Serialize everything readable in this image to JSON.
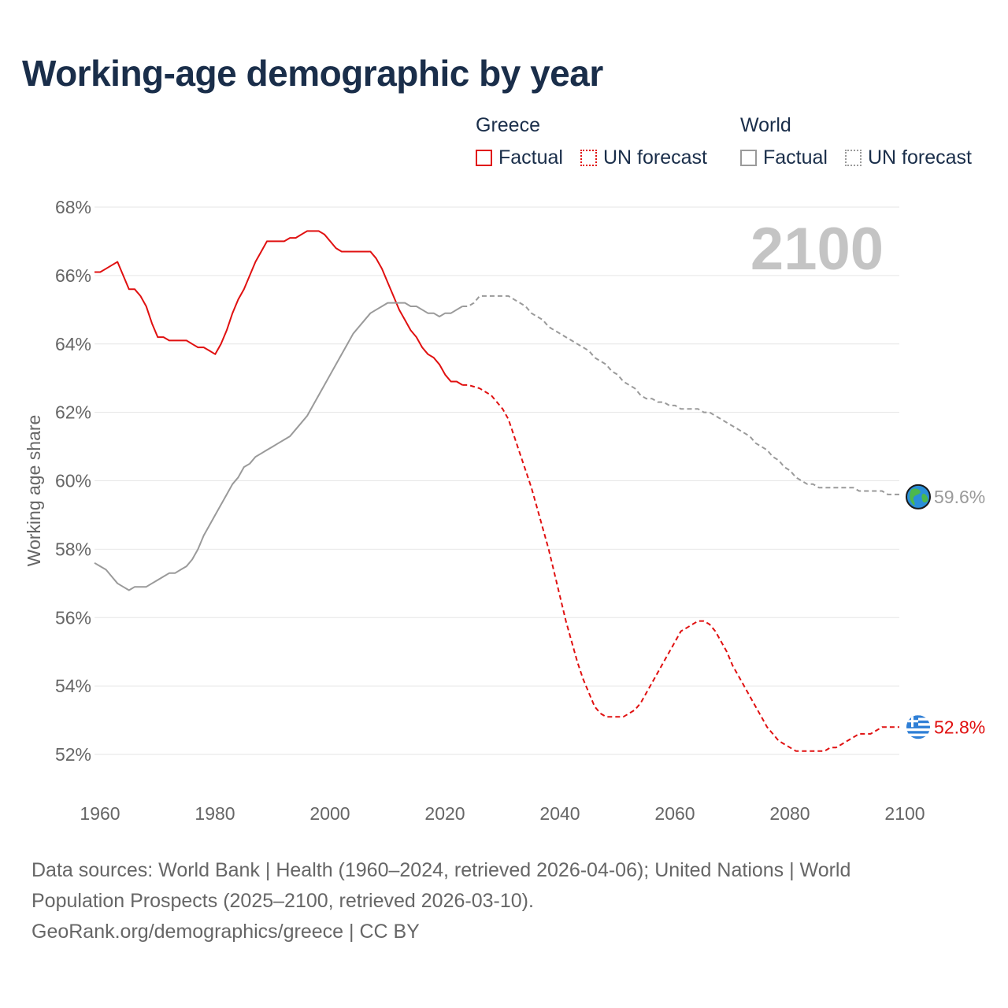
{
  "title": "Working-age demographic by year",
  "legend": {
    "groups": [
      {
        "name": "Greece",
        "factual_label": "Factual",
        "forecast_label": "UN forecast"
      },
      {
        "name": "World",
        "factual_label": "Factual",
        "forecast_label": "UN forecast"
      }
    ]
  },
  "colors": {
    "greece": "#e01010",
    "world": "#9a9a9a",
    "grid": "#e6e6e6",
    "title": "#1a2e4a"
  },
  "chart_data": {
    "type": "line",
    "title": "Working-age demographic by year",
    "xlabel": "",
    "ylabel": "Working age share",
    "xlim": [
      1960,
      2100
    ],
    "ylim": [
      51.5,
      68
    ],
    "x_ticks": [
      1960,
      1980,
      2000,
      2020,
      2040,
      2060,
      2080,
      2100
    ],
    "x_tick_labels": [
      "1960",
      "1980",
      "2000",
      "2020",
      "2040",
      "2060",
      "2080",
      "2100"
    ],
    "y_ticks": [
      52,
      54,
      56,
      58,
      60,
      62,
      64,
      66,
      68
    ],
    "y_tick_labels": [
      "52%",
      "54%",
      "56%",
      "58%",
      "60%",
      "62%",
      "64%",
      "66%",
      "68%"
    ],
    "year_display": "2100",
    "series": [
      {
        "name": "Greece",
        "kind": "factual",
        "icon": "greece-flag-icon",
        "points": [
          [
            1960,
            66.1
          ],
          [
            1961,
            66.1
          ],
          [
            1962,
            66.2
          ],
          [
            1963,
            66.3
          ],
          [
            1964,
            66.4
          ],
          [
            1965,
            66.0
          ],
          [
            1966,
            65.6
          ],
          [
            1967,
            65.6
          ],
          [
            1968,
            65.4
          ],
          [
            1969,
            65.1
          ],
          [
            1970,
            64.6
          ],
          [
            1971,
            64.2
          ],
          [
            1972,
            64.2
          ],
          [
            1973,
            64.1
          ],
          [
            1974,
            64.1
          ],
          [
            1975,
            64.1
          ],
          [
            1976,
            64.1
          ],
          [
            1977,
            64.0
          ],
          [
            1978,
            63.9
          ],
          [
            1979,
            63.9
          ],
          [
            1980,
            63.8
          ],
          [
            1981,
            63.7
          ],
          [
            1982,
            64.0
          ],
          [
            1983,
            64.4
          ],
          [
            1984,
            64.9
          ],
          [
            1985,
            65.3
          ],
          [
            1986,
            65.6
          ],
          [
            1987,
            66.0
          ],
          [
            1988,
            66.4
          ],
          [
            1989,
            66.7
          ],
          [
            1990,
            67.0
          ],
          [
            1991,
            67.0
          ],
          [
            1992,
            67.0
          ],
          [
            1993,
            67.0
          ],
          [
            1994,
            67.1
          ],
          [
            1995,
            67.1
          ],
          [
            1996,
            67.2
          ],
          [
            1997,
            67.3
          ],
          [
            1998,
            67.3
          ],
          [
            1999,
            67.3
          ],
          [
            2000,
            67.2
          ],
          [
            2001,
            67.0
          ],
          [
            2002,
            66.8
          ],
          [
            2003,
            66.7
          ],
          [
            2004,
            66.7
          ],
          [
            2005,
            66.7
          ],
          [
            2006,
            66.7
          ],
          [
            2007,
            66.7
          ],
          [
            2008,
            66.7
          ],
          [
            2009,
            66.5
          ],
          [
            2010,
            66.2
          ],
          [
            2011,
            65.8
          ],
          [
            2012,
            65.4
          ],
          [
            2013,
            65.0
          ],
          [
            2014,
            64.7
          ],
          [
            2015,
            64.4
          ],
          [
            2016,
            64.2
          ],
          [
            2017,
            63.9
          ],
          [
            2018,
            63.7
          ],
          [
            2019,
            63.6
          ],
          [
            2020,
            63.4
          ],
          [
            2021,
            63.1
          ],
          [
            2022,
            62.9
          ],
          [
            2023,
            62.9
          ],
          [
            2024,
            62.8
          ]
        ]
      },
      {
        "name": "Greece",
        "kind": "forecast",
        "end_label": "52.8%",
        "points": [
          [
            2024,
            62.8
          ],
          [
            2025,
            62.8
          ],
          [
            2026,
            62.75
          ],
          [
            2027,
            62.7
          ],
          [
            2028,
            62.6
          ],
          [
            2029,
            62.5
          ],
          [
            2030,
            62.3
          ],
          [
            2031,
            62.1
          ],
          [
            2032,
            61.8
          ],
          [
            2033,
            61.3
          ],
          [
            2034,
            60.8
          ],
          [
            2035,
            60.3
          ],
          [
            2036,
            59.8
          ],
          [
            2037,
            59.2
          ],
          [
            2038,
            58.6
          ],
          [
            2039,
            58.0
          ],
          [
            2040,
            57.3
          ],
          [
            2041,
            56.6
          ],
          [
            2042,
            55.9
          ],
          [
            2043,
            55.3
          ],
          [
            2044,
            54.7
          ],
          [
            2045,
            54.2
          ],
          [
            2046,
            53.8
          ],
          [
            2047,
            53.4
          ],
          [
            2048,
            53.2
          ],
          [
            2049,
            53.1
          ],
          [
            2050,
            53.1
          ],
          [
            2051,
            53.1
          ],
          [
            2052,
            53.1
          ],
          [
            2053,
            53.2
          ],
          [
            2054,
            53.3
          ],
          [
            2055,
            53.5
          ],
          [
            2056,
            53.8
          ],
          [
            2057,
            54.1
          ],
          [
            2058,
            54.4
          ],
          [
            2059,
            54.7
          ],
          [
            2060,
            55.0
          ],
          [
            2061,
            55.3
          ],
          [
            2062,
            55.6
          ],
          [
            2063,
            55.7
          ],
          [
            2064,
            55.8
          ],
          [
            2065,
            55.9
          ],
          [
            2066,
            55.9
          ],
          [
            2067,
            55.8
          ],
          [
            2068,
            55.6
          ],
          [
            2069,
            55.3
          ],
          [
            2070,
            55.0
          ],
          [
            2071,
            54.6
          ],
          [
            2072,
            54.3
          ],
          [
            2073,
            54.0
          ],
          [
            2074,
            53.7
          ],
          [
            2075,
            53.4
          ],
          [
            2076,
            53.1
          ],
          [
            2077,
            52.8
          ],
          [
            2078,
            52.6
          ],
          [
            2079,
            52.4
          ],
          [
            2080,
            52.3
          ],
          [
            2081,
            52.2
          ],
          [
            2082,
            52.1
          ],
          [
            2083,
            52.1
          ],
          [
            2084,
            52.1
          ],
          [
            2085,
            52.1
          ],
          [
            2086,
            52.1
          ],
          [
            2087,
            52.1
          ],
          [
            2088,
            52.2
          ],
          [
            2089,
            52.2
          ],
          [
            2090,
            52.3
          ],
          [
            2091,
            52.4
          ],
          [
            2092,
            52.5
          ],
          [
            2093,
            52.6
          ],
          [
            2094,
            52.6
          ],
          [
            2095,
            52.6
          ],
          [
            2096,
            52.7
          ],
          [
            2097,
            52.8
          ],
          [
            2098,
            52.8
          ],
          [
            2099,
            52.8
          ],
          [
            2100,
            52.8
          ]
        ]
      },
      {
        "name": "World",
        "kind": "factual",
        "icon": "globe-icon",
        "points": [
          [
            1960,
            57.6
          ],
          [
            1961,
            57.5
          ],
          [
            1962,
            57.4
          ],
          [
            1963,
            57.2
          ],
          [
            1964,
            57.0
          ],
          [
            1965,
            56.9
          ],
          [
            1966,
            56.8
          ],
          [
            1967,
            56.9
          ],
          [
            1968,
            56.9
          ],
          [
            1969,
            56.9
          ],
          [
            1970,
            57.0
          ],
          [
            1971,
            57.1
          ],
          [
            1972,
            57.2
          ],
          [
            1973,
            57.3
          ],
          [
            1974,
            57.3
          ],
          [
            1975,
            57.4
          ],
          [
            1976,
            57.5
          ],
          [
            1977,
            57.7
          ],
          [
            1978,
            58.0
          ],
          [
            1979,
            58.4
          ],
          [
            1980,
            58.7
          ],
          [
            1981,
            59.0
          ],
          [
            1982,
            59.3
          ],
          [
            1983,
            59.6
          ],
          [
            1984,
            59.9
          ],
          [
            1985,
            60.1
          ],
          [
            1986,
            60.4
          ],
          [
            1987,
            60.5
          ],
          [
            1988,
            60.7
          ],
          [
            1989,
            60.8
          ],
          [
            1990,
            60.9
          ],
          [
            1991,
            61.0
          ],
          [
            1992,
            61.1
          ],
          [
            1993,
            61.2
          ],
          [
            1994,
            61.3
          ],
          [
            1995,
            61.5
          ],
          [
            1996,
            61.7
          ],
          [
            1997,
            61.9
          ],
          [
            1998,
            62.2
          ],
          [
            1999,
            62.5
          ],
          [
            2000,
            62.8
          ],
          [
            2001,
            63.1
          ],
          [
            2002,
            63.4
          ],
          [
            2003,
            63.7
          ],
          [
            2004,
            64.0
          ],
          [
            2005,
            64.3
          ],
          [
            2006,
            64.5
          ],
          [
            2007,
            64.7
          ],
          [
            2008,
            64.9
          ],
          [
            2009,
            65.0
          ],
          [
            2010,
            65.1
          ],
          [
            2011,
            65.2
          ],
          [
            2012,
            65.2
          ],
          [
            2013,
            65.2
          ],
          [
            2014,
            65.2
          ],
          [
            2015,
            65.1
          ],
          [
            2016,
            65.1
          ],
          [
            2017,
            65.0
          ],
          [
            2018,
            64.9
          ],
          [
            2019,
            64.9
          ],
          [
            2020,
            64.8
          ],
          [
            2021,
            64.9
          ],
          [
            2022,
            64.9
          ],
          [
            2023,
            65.0
          ],
          [
            2024,
            65.1
          ]
        ]
      },
      {
        "name": "World",
        "kind": "forecast",
        "end_label": "59.6%",
        "points": [
          [
            2024,
            65.1
          ],
          [
            2025,
            65.1
          ],
          [
            2026,
            65.2
          ],
          [
            2027,
            65.4
          ],
          [
            2028,
            65.4
          ],
          [
            2029,
            65.4
          ],
          [
            2030,
            65.4
          ],
          [
            2031,
            65.4
          ],
          [
            2032,
            65.4
          ],
          [
            2033,
            65.3
          ],
          [
            2034,
            65.2
          ],
          [
            2035,
            65.1
          ],
          [
            2036,
            64.9
          ],
          [
            2037,
            64.8
          ],
          [
            2038,
            64.7
          ],
          [
            2039,
            64.5
          ],
          [
            2040,
            64.4
          ],
          [
            2041,
            64.3
          ],
          [
            2042,
            64.2
          ],
          [
            2043,
            64.1
          ],
          [
            2044,
            64.0
          ],
          [
            2045,
            63.9
          ],
          [
            2046,
            63.8
          ],
          [
            2047,
            63.6
          ],
          [
            2048,
            63.5
          ],
          [
            2049,
            63.4
          ],
          [
            2050,
            63.2
          ],
          [
            2051,
            63.1
          ],
          [
            2052,
            62.9
          ],
          [
            2053,
            62.8
          ],
          [
            2054,
            62.7
          ],
          [
            2055,
            62.5
          ],
          [
            2056,
            62.4
          ],
          [
            2057,
            62.4
          ],
          [
            2058,
            62.3
          ],
          [
            2059,
            62.3
          ],
          [
            2060,
            62.2
          ],
          [
            2061,
            62.2
          ],
          [
            2062,
            62.1
          ],
          [
            2063,
            62.1
          ],
          [
            2064,
            62.1
          ],
          [
            2065,
            62.1
          ],
          [
            2066,
            62.0
          ],
          [
            2067,
            62.0
          ],
          [
            2068,
            61.9
          ],
          [
            2069,
            61.8
          ],
          [
            2070,
            61.7
          ],
          [
            2071,
            61.6
          ],
          [
            2072,
            61.5
          ],
          [
            2073,
            61.4
          ],
          [
            2074,
            61.3
          ],
          [
            2075,
            61.1
          ],
          [
            2076,
            61.0
          ],
          [
            2077,
            60.9
          ],
          [
            2078,
            60.7
          ],
          [
            2079,
            60.6
          ],
          [
            2080,
            60.4
          ],
          [
            2081,
            60.3
          ],
          [
            2082,
            60.1
          ],
          [
            2083,
            60.0
          ],
          [
            2084,
            59.9
          ],
          [
            2085,
            59.9
          ],
          [
            2086,
            59.8
          ],
          [
            2087,
            59.8
          ],
          [
            2088,
            59.8
          ],
          [
            2089,
            59.8
          ],
          [
            2090,
            59.8
          ],
          [
            2091,
            59.8
          ],
          [
            2092,
            59.8
          ],
          [
            2093,
            59.7
          ],
          [
            2094,
            59.7
          ],
          [
            2095,
            59.7
          ],
          [
            2096,
            59.7
          ],
          [
            2097,
            59.7
          ],
          [
            2098,
            59.6
          ],
          [
            2099,
            59.6
          ],
          [
            2100,
            59.6
          ]
        ]
      }
    ]
  },
  "sources": {
    "line1": "Data sources: World Bank | Health (1960–2024, retrieved 2026-04-06); United Nations | World Population Prospects (2025–2100, retrieved 2026-03-10).",
    "line2": "GeoRank.org/demographics/greece | CC BY"
  }
}
